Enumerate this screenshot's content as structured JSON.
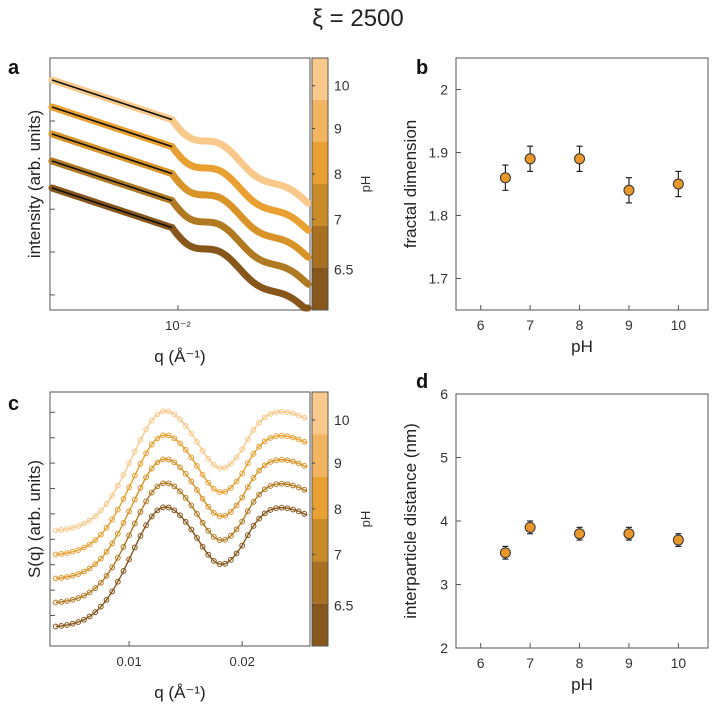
{
  "figure": {
    "title": "ξ = 2500",
    "colorbar": {
      "label": "pH",
      "ticks": [
        "6.5",
        "7",
        "8",
        "9",
        "10"
      ],
      "colors": [
        "#f8c98a",
        "#f2b460",
        "#e9a030",
        "#c98a28",
        "#a87020",
        "#86561a"
      ]
    }
  },
  "chart_data": [
    {
      "id": "a",
      "panel_label": "a",
      "type": "line",
      "xlabel": "q (Å⁻¹)",
      "ylabel": "intensity (arb. units)",
      "xscale": "log",
      "yscale": "log",
      "ytick_labels": "none",
      "xticks": [
        {
          "v": 0.01,
          "label": "10⁻²"
        }
      ],
      "note": "curves vertically offset for clarity; black lines = fits at low q",
      "series": [
        {
          "name": "pH 10",
          "color": "#f8c98a",
          "offset": 4
        },
        {
          "name": "pH 9",
          "color": "#e9a030",
          "offset": 3
        },
        {
          "name": "pH 8",
          "color": "#d99428",
          "offset": 2
        },
        {
          "name": "pH 7",
          "color": "#b07a22",
          "offset": 1
        },
        {
          "name": "pH 6.5",
          "color": "#86561a",
          "offset": 0
        }
      ]
    },
    {
      "id": "b",
      "panel_label": "b",
      "type": "scatter",
      "xlabel": "pH",
      "ylabel": "fractal dimension",
      "xlim": [
        5.5,
        10.6
      ],
      "ylim": [
        1.65,
        2.05
      ],
      "xticks": [
        6,
        7,
        8,
        9,
        10
      ],
      "yticks": [
        1.7,
        1.8,
        1.9,
        2
      ],
      "marker_color": "#e8972a",
      "points": [
        {
          "x": 6.5,
          "y": 1.86,
          "err": 0.02
        },
        {
          "x": 7,
          "y": 1.89,
          "err": 0.02
        },
        {
          "x": 8,
          "y": 1.89,
          "err": 0.02
        },
        {
          "x": 9,
          "y": 1.84,
          "err": 0.02
        },
        {
          "x": 10,
          "y": 1.85,
          "err": 0.02
        }
      ]
    },
    {
      "id": "c",
      "panel_label": "c",
      "type": "line",
      "xlabel": "q (Å⁻¹)",
      "ylabel": "S(q) (arb. units)",
      "xlim": [
        0.003,
        0.026
      ],
      "xticks": [
        0.01,
        0.02
      ],
      "xtick_labels": [
        "0.01",
        "0.02"
      ],
      "ytick_labels": "none",
      "note": "curves vertically offset for clarity",
      "series": [
        {
          "name": "pH 10",
          "color": "#f8c98a",
          "offset": 4
        },
        {
          "name": "pH 9",
          "color": "#e9a030",
          "offset": 3
        },
        {
          "name": "pH 8",
          "color": "#d99428",
          "offset": 2
        },
        {
          "name": "pH 7",
          "color": "#b07a22",
          "offset": 1
        },
        {
          "name": "pH 6.5",
          "color": "#86561a",
          "offset": 0
        }
      ]
    },
    {
      "id": "d",
      "panel_label": "d",
      "type": "scatter",
      "xlabel": "pH",
      "ylabel": "interparticle distance (nm)",
      "xlim": [
        5.5,
        10.6
      ],
      "ylim": [
        2,
        6
      ],
      "xticks": [
        6,
        7,
        8,
        9,
        10
      ],
      "yticks": [
        2,
        3,
        4,
        5,
        6
      ],
      "marker_color": "#e8972a",
      "points": [
        {
          "x": 6.5,
          "y": 3.5,
          "err": 0.1
        },
        {
          "x": 7,
          "y": 3.9,
          "err": 0.1
        },
        {
          "x": 8,
          "y": 3.8,
          "err": 0.1
        },
        {
          "x": 9,
          "y": 3.8,
          "err": 0.1
        },
        {
          "x": 10,
          "y": 3.7,
          "err": 0.1
        }
      ]
    }
  ]
}
